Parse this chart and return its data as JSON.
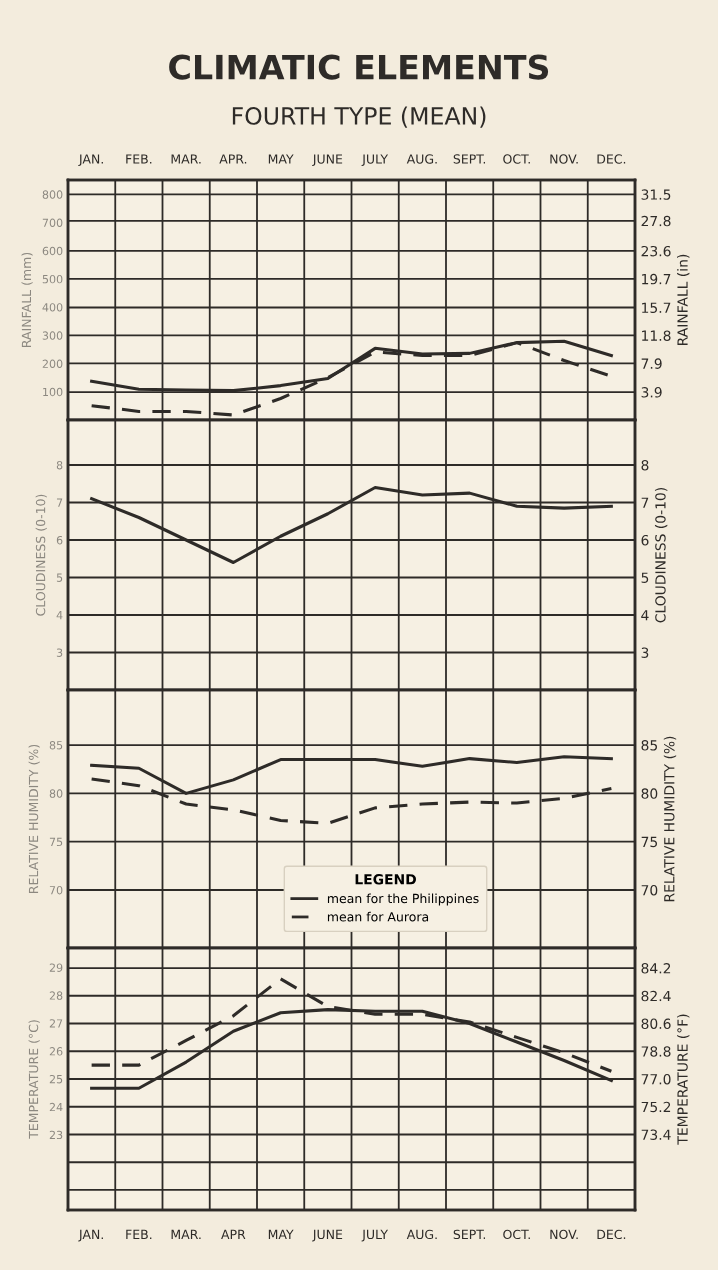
{
  "chart_data": [
    {
      "type": "line",
      "title": "CLIMATIC ELEMENTS",
      "subtitle": "FOURTH TYPE (MEAN)",
      "ylabel": "RAINFALL (mm)",
      "y2label": "RAINFALL (in)",
      "categories": [
        "JAN.",
        "FEB.",
        "MAR.",
        "APR.",
        "MAY",
        "JUNE",
        "JULY",
        "AUG.",
        "SEPT.",
        "OCT.",
        "NOV.",
        "DEC."
      ],
      "ylim": [
        0,
        851
      ],
      "yticks": [
        100,
        200,
        300,
        400,
        500,
        600,
        700,
        800
      ],
      "y2lim": [
        0,
        33.5
      ],
      "y2ticks": [
        3.9,
        7.9,
        11.8,
        15.7,
        19.7,
        23.6,
        27.8,
        31.5
      ],
      "series": [
        {
          "color": "#2e2b28",
          "axis": "y2",
          "line_style": "solid",
          "values": [
            5.4,
            4.3,
            4.2,
            4.1,
            4.8,
            5.8,
            10.0,
            9.2,
            9.3,
            10.8,
            11.0,
            9.0
          ]
        },
        {
          "color": "#2e2b28",
          "axis": "y2",
          "line_style": "dashed",
          "values": [
            2.0,
            1.2,
            1.2,
            0.7,
            3.0,
            5.9,
            9.5,
            9.0,
            9.0,
            10.8,
            8.3,
            6.1
          ]
        }
      ],
      "grid": true,
      "marker": "none"
    },
    {
      "type": "line",
      "ylabel": "CLOUDINESS (0-10)",
      "y2label": "CLOUDINESS (0-10)",
      "categories": [
        null,
        null,
        null,
        null,
        null,
        null,
        null,
        null,
        null,
        null,
        null,
        null
      ],
      "ylim": [
        2,
        9.2
      ],
      "yticks": [
        3,
        4,
        5,
        6,
        7,
        8
      ],
      "y2lim": [
        2,
        9.2
      ],
      "y2ticks": [
        3,
        4,
        5,
        6,
        7,
        8
      ],
      "series": [
        {
          "color": "#2e2b28",
          "axis": "y2",
          "line_style": "solid",
          "values": [
            7.1,
            6.6,
            6.0,
            5.4,
            6.1,
            6.7,
            7.4,
            7.2,
            7.25,
            6.9,
            6.85,
            6.9
          ]
        }
      ],
      "grid": true,
      "marker": "none",
      "tick_labels": "y"
    },
    {
      "type": "line",
      "ylabel": "RELATIVE HUMIDITY (%)",
      "y2label": "RELATIVE HUMIDITY (%)",
      "legend_title": "LEGEND",
      "categories": [
        null,
        null,
        null,
        null,
        null,
        null,
        null,
        null,
        null,
        null,
        null,
        null
      ],
      "ylim": [
        64,
        90.7
      ],
      "yticks": [
        70,
        75,
        80,
        85
      ],
      "y2lim": [
        64,
        90.7
      ],
      "y2ticks": [
        70,
        75,
        80,
        85
      ],
      "series": [
        {
          "name": "mean for the Philippines",
          "color": "#2e2b28",
          "axis": "y2",
          "line_style": "solid",
          "values": [
            82.9,
            82.6,
            80.0,
            81.4,
            83.5,
            83.5,
            83.5,
            82.8,
            83.6,
            83.2,
            83.8,
            83.6
          ]
        },
        {
          "name": "mean for Aurora",
          "color": "#2e2b28",
          "axis": "y2",
          "line_style": "dashed",
          "values": [
            81.5,
            80.8,
            78.9,
            78.3,
            77.2,
            76.9,
            78.5,
            78.9,
            79.1,
            79.0,
            79.5,
            80.5
          ]
        }
      ],
      "grid": true,
      "marker": "none",
      "legend": "bottom",
      "tick_labels": "y"
    },
    {
      "type": "line",
      "ylabel": "TEMPERATURE (°C)",
      "y2label": "TEMPERATURE (°F)",
      "categories": [
        "JAN.",
        "FEB.",
        "MAR.",
        "APR",
        "MAY",
        "JUNE",
        "JULY",
        "AUG.",
        "SEPT.",
        "OCT.",
        "NOV.",
        "DEC."
      ],
      "ylim": [
        20.3,
        29.7
      ],
      "yticks": [
        23,
        24,
        25,
        26,
        27,
        28,
        29
      ],
      "y2lim": [
        68.5,
        85.5
      ],
      "y2ticks": [
        {
          "value": 69.8,
          "label": null
        },
        {
          "value": 71.6,
          "label": null
        },
        73.4,
        75.2,
        {
          "value": 77.0,
          "label": "77.0"
        },
        78.8,
        80.6,
        82.4,
        84.2
      ],
      "series": [
        {
          "color": "#2e2b28",
          "axis": "y2",
          "line_style": "solid",
          "values": [
            76.4,
            76.4,
            78.1,
            80.1,
            81.3,
            81.5,
            81.4,
            81.4,
            80.6,
            79.4,
            78.2,
            76.9
          ]
        },
        {
          "color": "#2e2b28",
          "axis": "y2",
          "line_style": "dashed",
          "values": [
            77.9,
            77.9,
            79.5,
            81.1,
            83.5,
            81.7,
            81.2,
            81.2,
            80.7,
            79.7,
            78.7,
            77.5
          ]
        }
      ],
      "grid": true,
      "marker": "none"
    }
  ]
}
